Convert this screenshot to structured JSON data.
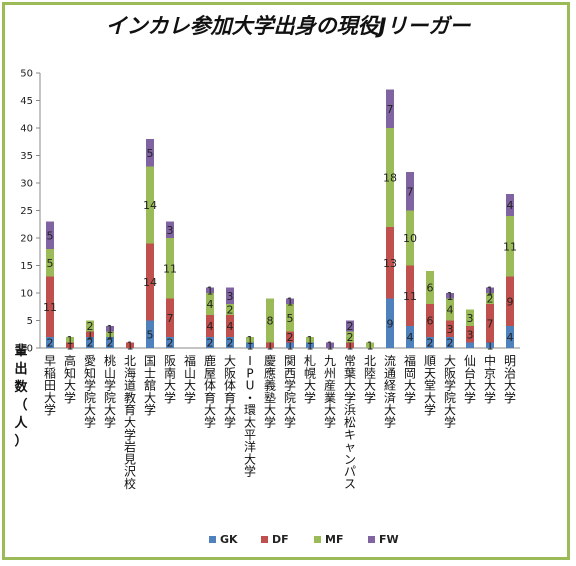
{
  "chart_data": {
    "type": "bar",
    "stacked": true,
    "title": "インカレ参加大学出身の現役Jリーガー",
    "ylabel": "輩出数（人）",
    "ylim": [
      0,
      50
    ],
    "yticks": [
      0,
      5,
      10,
      15,
      20,
      25,
      30,
      35,
      40,
      45,
      50
    ],
    "grid": false,
    "legend_position": "bottom",
    "categories": [
      "早稲田大学",
      "高知大学",
      "愛知学院大学",
      "桃山学院大学",
      "北海道教育大学岩見沢校",
      "国士舘大学",
      "阪南大学",
      "福山大学",
      "鹿屋体育大学",
      "大阪体育大学",
      "IPU・環太平洋大学",
      "慶應義塾大学",
      "関西学院大学",
      "札幌大学",
      "九州産業大学",
      "常葉大学浜松キャンパス",
      "北陸大学",
      "流通経済大学",
      "福岡大学",
      "順天堂大学",
      "大阪学院大学",
      "仙台大学",
      "中京大学",
      "明治大学"
    ],
    "series": [
      {
        "name": "GK",
        "color": "#4f81bd",
        "values": [
          2,
          0,
          2,
          2,
          0,
          5,
          2,
          0,
          2,
          2,
          1,
          0,
          1,
          1,
          0,
          0,
          0,
          9,
          4,
          2,
          2,
          1,
          1,
          4
        ]
      },
      {
        "name": "DF",
        "color": "#c0504d",
        "values": [
          11,
          1,
          1,
          0,
          1,
          14,
          7,
          0,
          4,
          4,
          0,
          1,
          2,
          0,
          0,
          1,
          0,
          13,
          11,
          6,
          3,
          3,
          7,
          9
        ]
      },
      {
        "name": "MF",
        "color": "#9bbb59",
        "values": [
          5,
          1,
          2,
          1,
          0,
          14,
          11,
          0,
          4,
          2,
          1,
          8,
          5,
          1,
          0,
          2,
          1,
          18,
          10,
          6,
          4,
          3,
          2,
          11
        ]
      },
      {
        "name": "FW",
        "color": "#8064a2",
        "values": [
          5,
          0,
          0,
          1,
          0,
          5,
          3,
          0,
          1,
          3,
          0,
          0,
          1,
          0,
          1,
          2,
          0,
          7,
          7,
          0,
          1,
          0,
          1,
          4
        ]
      }
    ],
    "data_labels": [
      [
        "2",
        "",
        "2",
        "2",
        "",
        "5",
        "2",
        "",
        "2",
        "2",
        "1",
        "",
        "1",
        "1",
        "",
        "",
        "",
        "9",
        "4",
        "2",
        "2",
        "",
        "1",
        "4"
      ],
      [
        "11",
        "1",
        "1",
        "",
        "1",
        "14",
        "7",
        "",
        "4",
        "4",
        "",
        "1",
        "2",
        "",
        "",
        "1",
        "",
        "13",
        "11",
        "6",
        "3",
        "3",
        "7",
        "9"
      ],
      [
        "5",
        "1",
        "2",
        "1",
        "",
        "14",
        "11",
        "",
        "4",
        "2",
        "1",
        "8",
        "5",
        "1",
        "",
        "2",
        "1",
        "18",
        "10",
        "6",
        "4",
        "3",
        "2",
        "11"
      ],
      [
        "5",
        "",
        "",
        "1",
        "",
        "5",
        "3",
        "",
        "1",
        "3",
        "",
        "",
        "1",
        "",
        "1",
        "2",
        "",
        "7",
        "7",
        "",
        "1",
        "",
        "1",
        "4"
      ]
    ]
  }
}
